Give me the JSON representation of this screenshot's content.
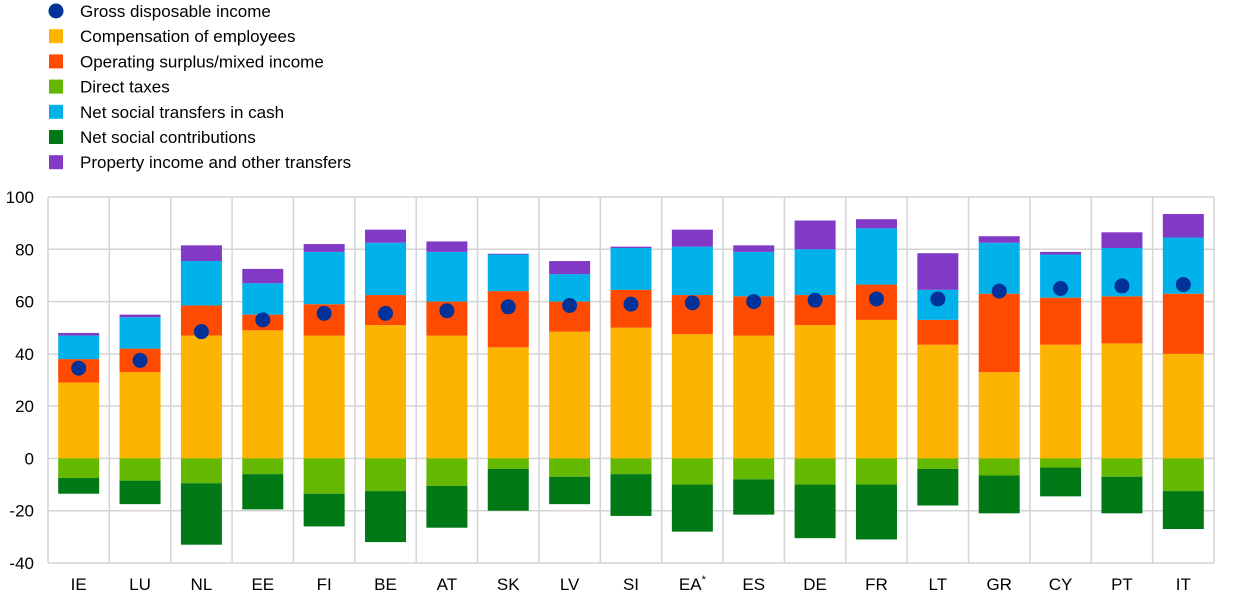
{
  "chart_data": {
    "type": "bar",
    "stacked": true,
    "categories": [
      "IE",
      "LU",
      "NL",
      "EE",
      "FI",
      "BE",
      "AT",
      "SK",
      "LV",
      "SI",
      "EA",
      "ES",
      "DE",
      "FR",
      "LT",
      "GR",
      "CY",
      "PT",
      "IT"
    ],
    "category_superscripts": {
      "EA": "*"
    },
    "ylim": [
      -40,
      100
    ],
    "yticks": [
      -40,
      -20,
      0,
      20,
      40,
      60,
      80,
      100
    ],
    "grid": true,
    "legend_position": "top-left",
    "series": [
      {
        "name": "Compensation of employees",
        "color": "#FDB400",
        "values": [
          29,
          33,
          47,
          49,
          47,
          51,
          47,
          42.5,
          48.5,
          50,
          47.5,
          47,
          51,
          53,
          43.5,
          33,
          43.5,
          44,
          40
        ]
      },
      {
        "name": "Operating surplus/mixed income",
        "color": "#FF4B00",
        "values": [
          9,
          9,
          11.5,
          6,
          12,
          11.5,
          13,
          21.5,
          11.5,
          14.5,
          15,
          15,
          11.5,
          13.5,
          9.5,
          30,
          18,
          18,
          23
        ]
      },
      {
        "name": "Direct taxes",
        "color": "#65B800",
        "values": [
          -7.5,
          -8.5,
          -9.5,
          -6,
          -13.5,
          -12.5,
          -10.5,
          -4,
          -7,
          -6,
          -10,
          -8,
          -10,
          -10,
          -4,
          -6.5,
          -3.5,
          -7,
          -12.5
        ]
      },
      {
        "name": "Net social transfers in cash",
        "color": "#00B1EA",
        "values": [
          9,
          12,
          17,
          12,
          20,
          20,
          19,
          14,
          10.5,
          16,
          18.5,
          17,
          17.5,
          21.5,
          11.5,
          19.5,
          16.5,
          18.5,
          21.5
        ]
      },
      {
        "name": "Net social contributions",
        "color": "#007816",
        "values": [
          -6,
          -9,
          -23.5,
          -13.5,
          -12.5,
          -19.5,
          -16,
          -16,
          -10.5,
          -16,
          -18,
          -13.5,
          -20.5,
          -21,
          -14,
          -14.5,
          -11,
          -14,
          -14.5
        ]
      },
      {
        "name": "Property income and other transfers",
        "color": "#8139C6",
        "values": [
          1,
          1,
          6,
          5.5,
          3,
          5,
          4,
          0.3,
          5,
          0.5,
          6.5,
          2.5,
          11,
          3.5,
          14,
          2.5,
          1,
          6,
          9
        ]
      }
    ],
    "markers": {
      "name": "Gross disposable income",
      "color": "#003299",
      "values": [
        34.5,
        37.5,
        48.5,
        53,
        55.5,
        55.5,
        56.5,
        58,
        58.5,
        59,
        59.5,
        60,
        60.5,
        61,
        61,
        64,
        65,
        66,
        66.5
      ]
    },
    "legend_order": [
      "Gross disposable income",
      "Compensation of employees",
      "Operating surplus/mixed income",
      "Direct taxes",
      "Net social transfers in cash",
      "Net social contributions",
      "Property income and other transfers"
    ]
  }
}
